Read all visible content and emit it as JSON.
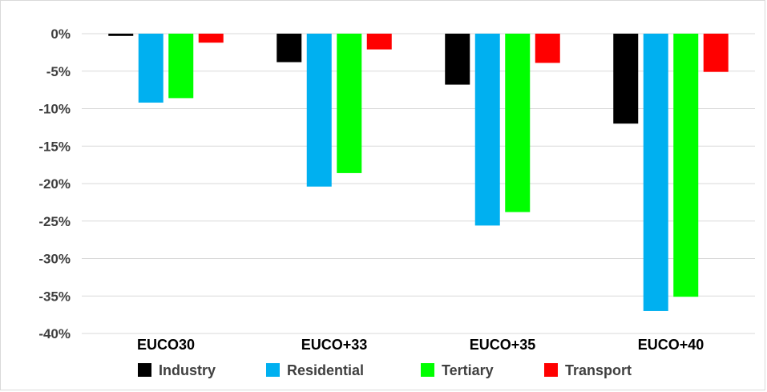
{
  "chart_data": {
    "type": "bar",
    "title": "",
    "xlabel": "",
    "ylabel": "",
    "categories": [
      "EUCO30",
      "EUCO+33",
      "EUCO+35",
      "EUCO+40"
    ],
    "series": [
      {
        "name": "Industry",
        "color": "#000000",
        "values": [
          -0.3,
          -3.8,
          -6.8,
          -12.0
        ]
      },
      {
        "name": "Residential",
        "color": "#00b0f0",
        "values": [
          -9.2,
          -20.4,
          -25.6,
          -37.0
        ]
      },
      {
        "name": "Tertiary",
        "color": "#00ff00",
        "values": [
          -8.6,
          -18.6,
          -23.8,
          -35.1
        ]
      },
      {
        "name": "Transport",
        "color": "#ff0000",
        "values": [
          -1.2,
          -2.1,
          -3.9,
          -5.1
        ]
      }
    ],
    "ylim": [
      -40,
      0
    ],
    "yticks": [
      0,
      -5,
      -10,
      -15,
      -20,
      -25,
      -30,
      -35,
      -40
    ],
    "ytick_labels": [
      "0%",
      "-5%",
      "-10%",
      "-15%",
      "-20%",
      "-25%",
      "-30%",
      "-35%",
      "-40%"
    ],
    "grid": true,
    "legend_position": "bottom"
  }
}
